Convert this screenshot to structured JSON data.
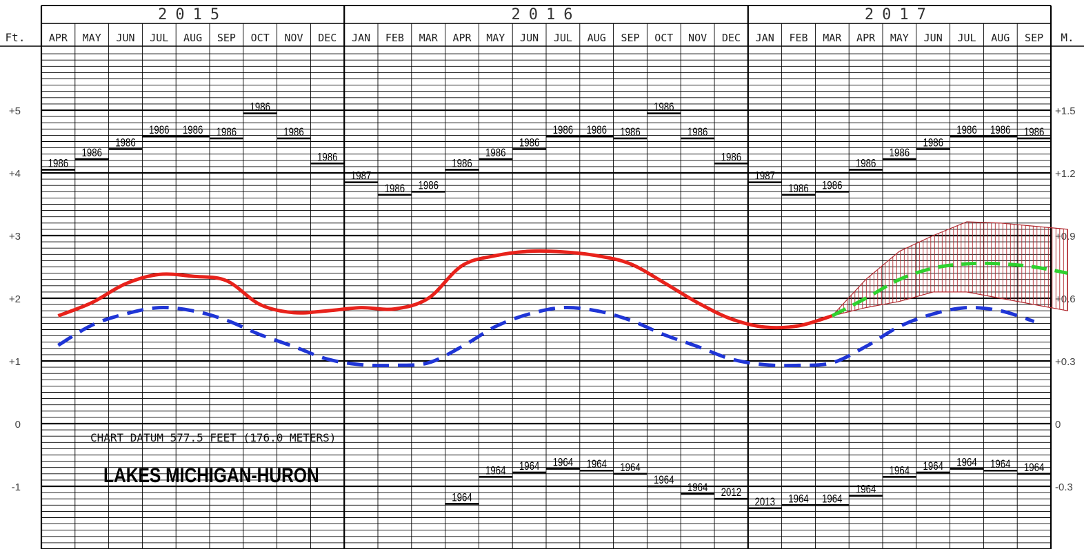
{
  "chart_data": {
    "type": "line",
    "years": [
      {
        "label": "2015",
        "months": [
          "APR",
          "MAY",
          "JUN",
          "JUL",
          "AUG",
          "SEP",
          "OCT",
          "NOV",
          "DEC"
        ]
      },
      {
        "label": "2016",
        "months": [
          "JAN",
          "FEB",
          "MAR",
          "APR",
          "MAY",
          "JUN",
          "JUL",
          "AUG",
          "SEP",
          "OCT",
          "NOV",
          "DEC"
        ]
      },
      {
        "label": "2017",
        "months": [
          "JAN",
          "FEB",
          "MAR",
          "APR",
          "MAY",
          "JUN",
          "JUL",
          "AUG",
          "SEP"
        ]
      }
    ],
    "left_axis": {
      "unit": "Ft.",
      "ticks": [
        "+5",
        "+4",
        "+3",
        "+2",
        "+1",
        "0",
        "-1"
      ],
      "tick_values": [
        5,
        4,
        3,
        2,
        1,
        0,
        -1
      ]
    },
    "right_axis": {
      "unit": "M.",
      "ticks": [
        "+1.5",
        "+1.2",
        "+0.9",
        "+0.6",
        "+0.3",
        "0",
        "-0.3"
      ],
      "tick_values": [
        5,
        4,
        3,
        2,
        1,
        0,
        -1
      ]
    },
    "ylim": [
      -2.0,
      6.4
    ],
    "annotations": {
      "datum": "CHART DATUM  577.5 FEET (176.0 METERS)",
      "lake": "LAKES MICHIGAN-HURON"
    },
    "record_highs": {
      "years": [
        "1986",
        "1986",
        "1986",
        "1986",
        "1986",
        "1986",
        "1986",
        "1986",
        "1986",
        "1987",
        "1986",
        "1986",
        "1986",
        "1986",
        "1986",
        "1986",
        "1986",
        "1986",
        "1986",
        "1986",
        "1986",
        "1987",
        "1986",
        "1986",
        "1986",
        "1986",
        "1986",
        "1986",
        "1986",
        "1986"
      ],
      "values": [
        4.05,
        4.22,
        4.38,
        4.58,
        4.58,
        4.55,
        4.95,
        4.55,
        4.15,
        3.85,
        3.65,
        3.7,
        4.05,
        4.22,
        4.38,
        4.58,
        4.58,
        4.55,
        4.95,
        4.55,
        4.15,
        3.85,
        3.65,
        3.7,
        4.05,
        4.22,
        4.38,
        4.58,
        4.58,
        4.55
      ]
    },
    "record_lows": {
      "years": [
        "1964",
        "1964",
        "1964",
        "1964",
        "1964",
        "1964",
        "1964",
        "1964",
        "2012",
        "2013",
        "1964",
        "1964",
        "1964",
        "1964",
        "1964",
        "1964",
        "1964",
        "1964"
      ],
      "values": [
        -1.28,
        -0.85,
        -0.78,
        -0.72,
        -0.75,
        -0.8,
        -1.0,
        -1.12,
        -1.2,
        -1.35,
        -1.3,
        -1.3,
        -1.15,
        -0.85,
        -0.78,
        -0.72,
        -0.75,
        -0.8
      ],
      "start_index": 12
    },
    "series": [
      {
        "color": "#e8221b",
        "style": "solid",
        "values": [
          1.72,
          1.93,
          2.23,
          2.38,
          2.35,
          2.28,
          1.9,
          1.77,
          1.8,
          1.85,
          1.83,
          2.0,
          2.52,
          2.68,
          2.75,
          2.74,
          2.68,
          2.55,
          2.25,
          1.93,
          1.67,
          1.54,
          1.56,
          1.72
        ],
        "start_index": 0
      },
      {
        "color": "#1f35d6",
        "style": "dashed",
        "values": [
          1.25,
          1.57,
          1.75,
          1.85,
          1.8,
          1.65,
          1.42,
          1.23,
          1.03,
          0.94,
          0.93,
          0.97,
          1.23,
          1.55,
          1.75,
          1.85,
          1.8,
          1.65,
          1.42,
          1.23,
          1.03,
          0.94,
          0.93,
          0.97,
          1.23,
          1.55,
          1.75,
          1.85,
          1.8,
          1.63
        ],
        "start_index": 0
      },
      {
        "color": "#2fd12f",
        "style": "dashed",
        "values": [
          1.72,
          2.0,
          2.3,
          2.48,
          2.55,
          2.55,
          2.5,
          2.4
        ],
        "start_index": 23
      }
    ],
    "forecast_band": {
      "color": "#b0282e",
      "start_index": 23,
      "upper": [
        1.72,
        2.3,
        2.75,
        3.0,
        3.22,
        3.2,
        3.15,
        3.1
      ],
      "lower": [
        1.72,
        1.85,
        1.95,
        2.1,
        2.1,
        2.0,
        1.9,
        1.8
      ]
    }
  }
}
